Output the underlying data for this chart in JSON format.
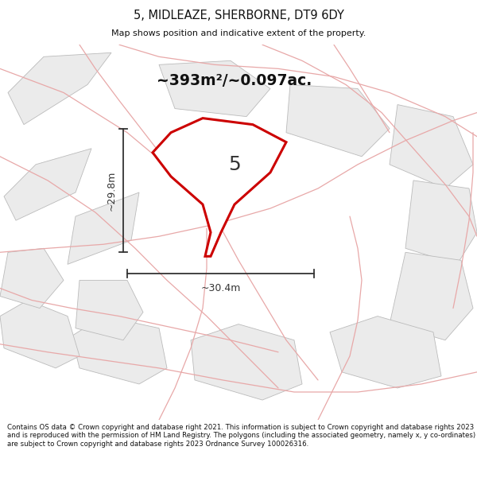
{
  "title_line1": "5, MIDLEAZE, SHERBORNE, DT9 6DY",
  "title_line2": "Map shows position and indicative extent of the property.",
  "area_text": "~393m²/~0.097ac.",
  "label_number": "5",
  "dim_horizontal": "~30.4m",
  "dim_vertical": "~29.8m",
  "footer_text": "Contains OS data © Crown copyright and database right 2021. This information is subject to Crown copyright and database rights 2023 and is reproduced with the permission of HM Land Registry. The polygons (including the associated geometry, namely x, y co-ordinates) are subject to Crown copyright and database rights 2023 Ordnance Survey 100026316.",
  "map_bg": "#ffffff",
  "road_color": "#e8a8a8",
  "plot_edge_color": "#bbbbbb",
  "plot_fill_bg": "#ebebeb",
  "prop_color": "#cc0000",
  "prop_fill": "#ffffff",
  "dim_color": "#333333",
  "title_color": "#111111",
  "footer_color": "#111111",
  "road_lw": 0.9,
  "plot_lw": 0.6
}
